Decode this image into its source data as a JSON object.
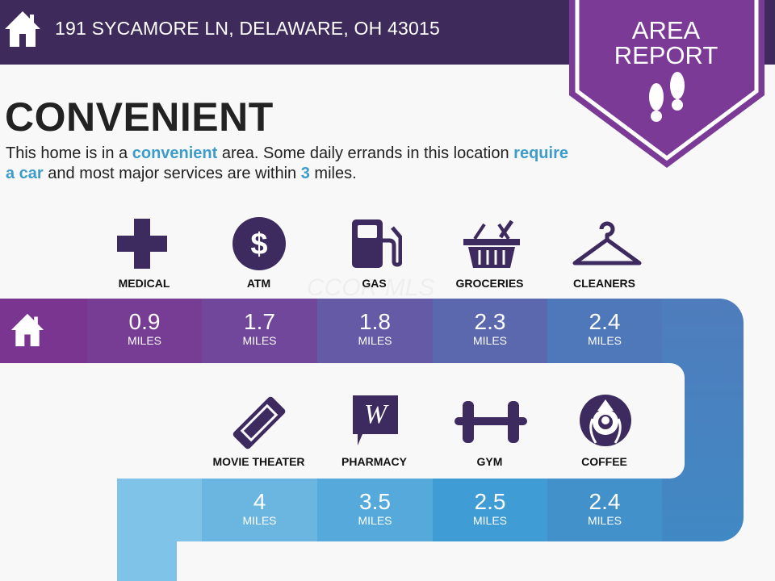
{
  "header": {
    "address": "191 SYCAMORE LN, DELAWARE, OH 43015",
    "icon": "home-icon"
  },
  "badge": {
    "line1": "AREA",
    "line2": "REPORT",
    "icon": "footprints-icon",
    "color": "#7b3a96"
  },
  "summary": {
    "title": "CONVENIENT",
    "text_1": "This home is in a ",
    "highlight_1": "convenient",
    "text_2": " area. Some daily errands in this location ",
    "highlight_2": "require a car",
    "text_3": " and most major services are within ",
    "highlight_3": "3",
    "text_4": " miles."
  },
  "watermark": "CCOR MLS",
  "unit": "MILES",
  "top_row": [
    {
      "label": "MEDICAL",
      "value": "0.9",
      "icon": "medical-cross-icon"
    },
    {
      "label": "ATM",
      "value": "1.7",
      "icon": "dollar-coin-icon"
    },
    {
      "label": "GAS",
      "value": "1.8",
      "icon": "gas-pump-icon"
    },
    {
      "label": "GROCERIES",
      "value": "2.3",
      "icon": "grocery-basket-icon"
    },
    {
      "label": "CLEANERS",
      "value": "2.4",
      "icon": "hanger-icon"
    }
  ],
  "bottom_row": [
    {
      "label": "MOVIE THEATER",
      "value": "4",
      "icon": "ticket-icon"
    },
    {
      "label": "PHARMACY",
      "value": "3.5",
      "icon": "walgreens-icon"
    },
    {
      "label": "GYM",
      "value": "2.5",
      "icon": "dumbbell-icon"
    },
    {
      "label": "COFFEE",
      "value": "2.4",
      "icon": "starbucks-icon"
    }
  ],
  "colors": {
    "header": "#3f2a5c",
    "icons": "#3d2a5e",
    "highlight": "#3d9cc8"
  }
}
